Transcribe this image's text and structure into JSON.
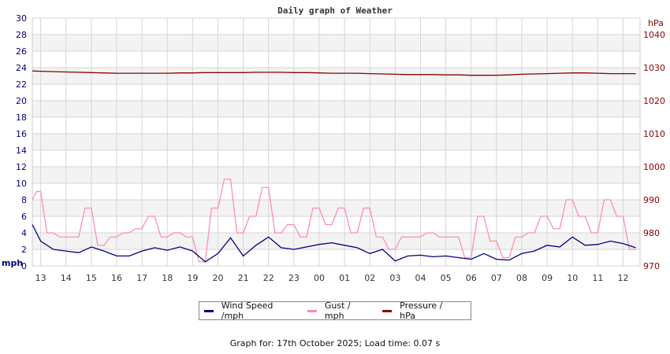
{
  "chart_data": {
    "type": "line",
    "title": "Daily graph of Weather",
    "left_axis": {
      "label": "mph",
      "range": [
        0,
        30
      ],
      "ticks": [
        "0",
        "2",
        "4",
        "6",
        "8",
        "10",
        "12",
        "14",
        "16",
        "18",
        "20",
        "22",
        "24",
        "26",
        "28",
        "30"
      ]
    },
    "right_axis": {
      "label": "hPa",
      "range": [
        970,
        1045
      ],
      "ticks": [
        "970",
        "980",
        "990",
        "1000",
        "1010",
        "1020",
        "1030",
        "1040"
      ]
    },
    "x_axis": {
      "range_hours": [
        12.67,
        36.67
      ],
      "ticks": [
        "13",
        "14",
        "15",
        "16",
        "17",
        "18",
        "19",
        "20",
        "21",
        "22",
        "23",
        "00",
        "01",
        "02",
        "03",
        "04",
        "05",
        "06",
        "07",
        "08",
        "09",
        "10",
        "11",
        "12"
      ]
    },
    "grid": true,
    "x_hours": [
      12.67,
      13,
      13.5,
      14,
      14.5,
      15,
      15.5,
      16,
      16.5,
      17,
      17.5,
      18,
      18.5,
      19,
      19.5,
      20,
      20.5,
      21,
      21.5,
      22,
      22.5,
      23,
      23.5,
      24,
      24.5,
      25,
      25.5,
      26,
      26.5,
      27,
      27.5,
      28,
      28.5,
      29,
      29.5,
      30,
      30.5,
      31,
      31.5,
      32,
      32.5,
      33,
      33.5,
      34,
      34.5,
      35,
      35.5,
      36,
      36.5
    ],
    "series": [
      {
        "name": "Wind Speed /mph",
        "color": "#000080",
        "axis": "left",
        "values": [
          5,
          3,
          2,
          1.8,
          1.6,
          2.3,
          1.8,
          1.2,
          1.2,
          1.8,
          2.2,
          1.9,
          2.3,
          1.8,
          0.5,
          1.5,
          3.4,
          1.2,
          2.5,
          3.5,
          2.2,
          2.0,
          2.3,
          2.6,
          2.8,
          2.5,
          2.2,
          1.5,
          2.0,
          0.6,
          1.2,
          1.3,
          1.1,
          1.2,
          1.0,
          0.8,
          1.5,
          0.8,
          0.7,
          1.5,
          1.8,
          2.5,
          2.3,
          3.5,
          2.5,
          2.6,
          3.0,
          2.7,
          2.2
        ]
      },
      {
        "name": "Gust / mph",
        "color": "#ff88aa",
        "axis": "left",
        "values": [
          8,
          9,
          4,
          3.5,
          3.5,
          7,
          2.5,
          3.5,
          4,
          4.5,
          6,
          3.5,
          4,
          3.5,
          0.5,
          7,
          10.5,
          4,
          6,
          9.5,
          4,
          5,
          3.5,
          7,
          5,
          7,
          4,
          7,
          3.5,
          2,
          3.5,
          3.5,
          4,
          3.5,
          3.5,
          1,
          6,
          3,
          1,
          3.5,
          4,
          6,
          4.5,
          8,
          6,
          4,
          8,
          6,
          2
        ]
      },
      {
        "name": "Pressure / hPa",
        "color": "#8b0000",
        "axis": "right",
        "values": [
          1029.0,
          1028.9,
          1028.8,
          1028.7,
          1028.6,
          1028.5,
          1028.4,
          1028.3,
          1028.3,
          1028.3,
          1028.3,
          1028.3,
          1028.4,
          1028.4,
          1028.5,
          1028.5,
          1028.5,
          1028.5,
          1028.6,
          1028.6,
          1028.6,
          1028.5,
          1028.5,
          1028.4,
          1028.3,
          1028.3,
          1028.3,
          1028.2,
          1028.1,
          1028.0,
          1027.9,
          1027.9,
          1027.9,
          1027.8,
          1027.8,
          1027.7,
          1027.7,
          1027.7,
          1027.8,
          1028.0,
          1028.1,
          1028.2,
          1028.3,
          1028.4,
          1028.4,
          1028.3,
          1028.2,
          1028.2,
          1028.2
        ]
      }
    ],
    "legend": {
      "placement": "bottom",
      "entries": [
        "Wind Speed /mph",
        "Gust / mph",
        "Pressure / hPa"
      ]
    }
  },
  "footer": "Graph for: 17th October 2025; Load time: 0.07 s"
}
